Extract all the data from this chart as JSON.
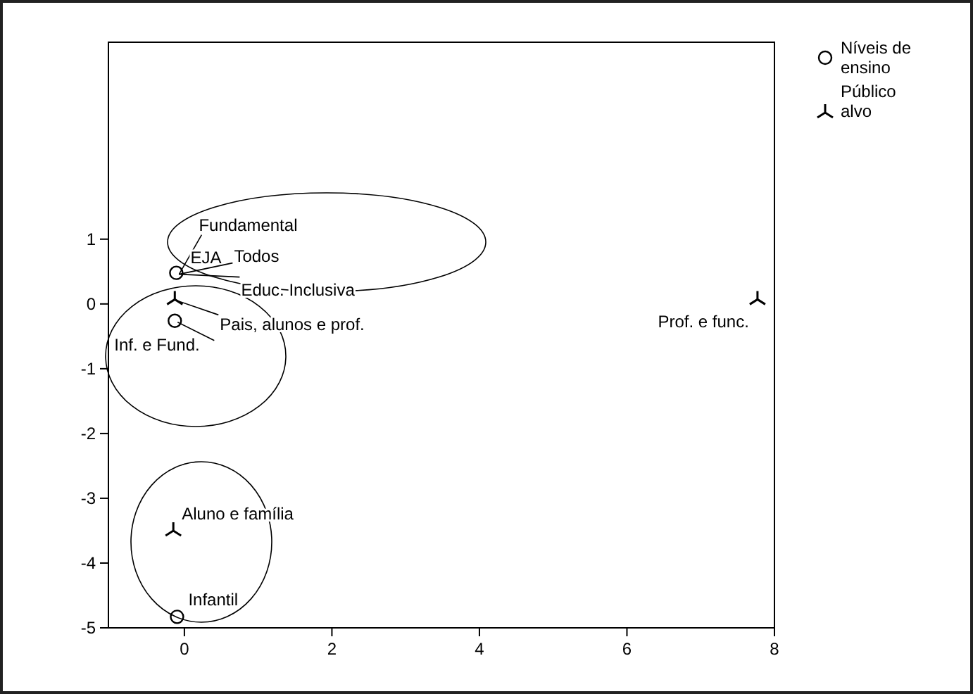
{
  "chart_data": {
    "type": "scatter",
    "xlim": [
      -1.03,
      8
    ],
    "ylim": [
      -5,
      4.04
    ],
    "xticks": [
      0,
      2,
      4,
      6,
      8
    ],
    "yticks": [
      -5,
      -4,
      -3,
      -2,
      -1,
      0,
      1
    ],
    "grid": false,
    "legend": "top right",
    "series": [
      {
        "name": "Níveis de ensino",
        "color": "#000000",
        "marker": "circle",
        "x": [
          -0.11,
          -0.13,
          -0.1
        ],
        "values": [
          0.48,
          -0.26,
          -4.83
        ]
      },
      {
        "name": "Público alvo",
        "color": "#000000",
        "marker": "cross",
        "x": [
          -0.13,
          -0.15,
          7.77
        ],
        "values": [
          0.07,
          -3.5,
          0.07
        ]
      }
    ],
    "annotations": [
      {
        "text": "Fundamental",
        "x": -0.11,
        "y": 0.48
      },
      {
        "text": "EJA",
        "x": -0.11,
        "y": 0.48
      },
      {
        "text": "Todos",
        "x": -0.11,
        "y": 0.48
      },
      {
        "text": "Educ. Inclusiva",
        "x": -0.11,
        "y": 0.48
      },
      {
        "text": "Pais, alunos e prof.",
        "x": -0.13,
        "y": 0.07
      },
      {
        "text": "Inf. e Fund.",
        "x": -0.13,
        "y": -0.26
      },
      {
        "text": "Aluno e família",
        "x": -0.15,
        "y": -3.5
      },
      {
        "text": "Infantil",
        "x": -0.1,
        "y": -4.83
      },
      {
        "text": "Prof. e func.",
        "x": 7.77,
        "y": 0.07
      }
    ]
  }
}
